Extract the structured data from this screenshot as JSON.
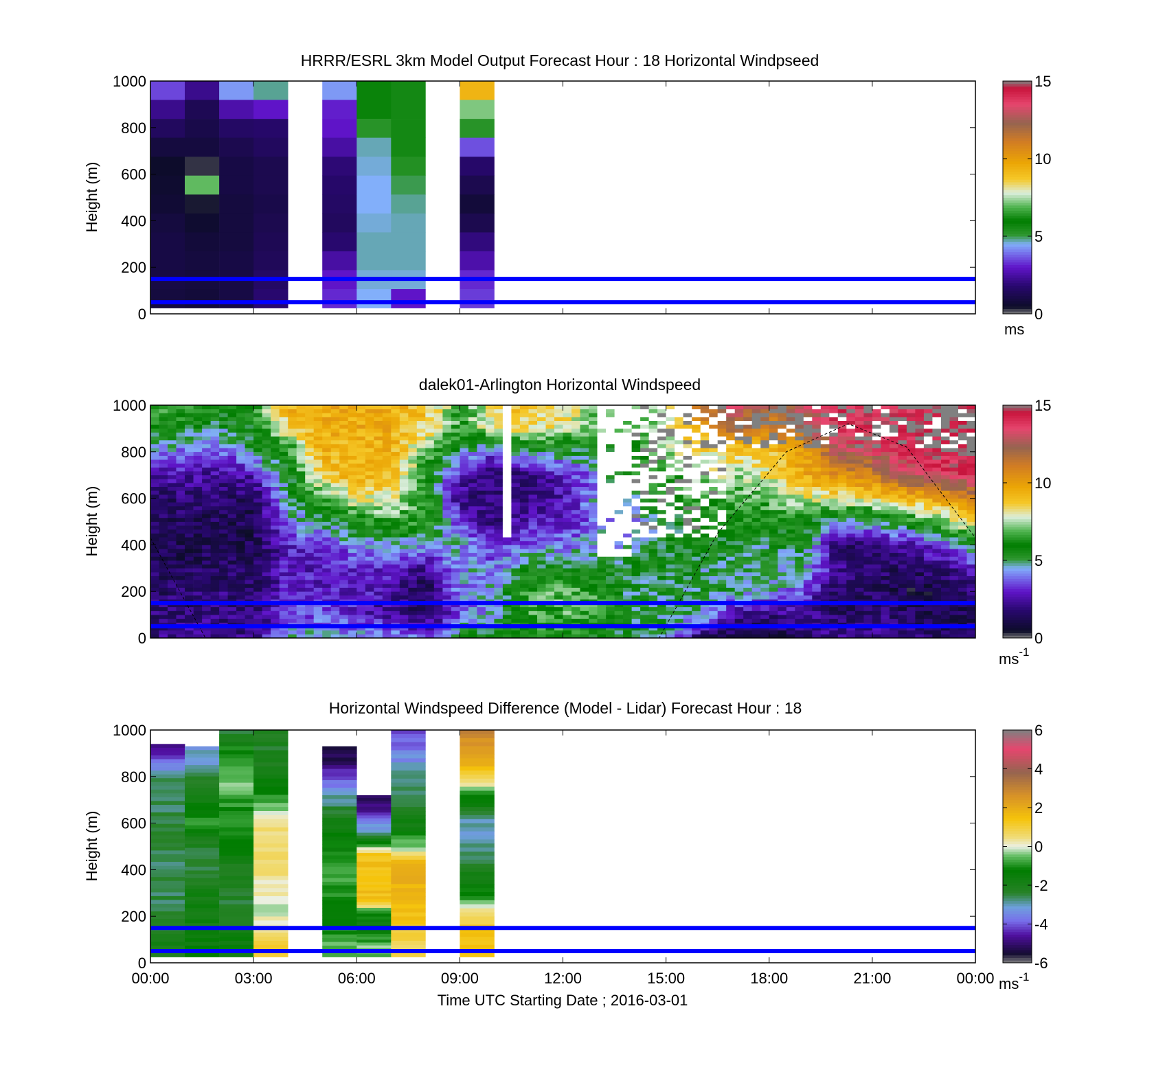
{
  "chart_data": [
    {
      "type": "heatmap",
      "title": "HRRR/ESRL 3km Model Output   Forecast Hour : 18 Horizontal Windpseed",
      "ylabel": "Height (m)",
      "ylim": [
        0,
        1000
      ],
      "yticks": [
        "0",
        "200",
        "400",
        "600",
        "800",
        "1000"
      ],
      "xlim_hours": [
        0,
        24
      ],
      "colorbar": {
        "min": 0,
        "max": 15,
        "ticks": [
          "0",
          "5",
          "10",
          "15"
        ],
        "unit": "ms",
        "unit_sup": "",
        "colormap": "speed"
      },
      "reference_lines_m": [
        150,
        50
      ],
      "columns": [
        {
          "x_start_h": 0,
          "x_end_h": 1,
          "values_top_to_bottom": [
            3.5,
            2.2,
            1.5,
            0.9,
            0.5,
            0.6,
            0.7,
            0.9,
            1.0,
            1.0,
            1.0,
            0.9
          ]
        },
        {
          "x_start_h": 1,
          "x_end_h": 2,
          "values_top_to_bottom": [
            2.2,
            1.3,
            1.1,
            0.9,
            0.3,
            7.0,
            0.4,
            0.6,
            0.8,
            0.9,
            0.9,
            0.8
          ]
        },
        {
          "x_start_h": 2,
          "x_end_h": 3,
          "values_top_to_bottom": [
            4.3,
            2.6,
            1.6,
            1.2,
            1.0,
            1.0,
            0.9,
            0.9,
            0.9,
            1.0,
            1.0,
            1.0
          ]
        },
        {
          "x_start_h": 3,
          "x_end_h": 4,
          "values_top_to_bottom": [
            4.8,
            3.0,
            1.7,
            1.5,
            1.2,
            1.2,
            1.1,
            1.2,
            1.3,
            1.4,
            1.6,
            1.8
          ]
        },
        {
          "x_start_h": 5,
          "x_end_h": 6,
          "values_top_to_bottom": [
            4.3,
            3.1,
            3.0,
            2.5,
            1.9,
            1.7,
            1.6,
            1.5,
            1.8,
            2.5,
            3.0,
            3.2
          ]
        },
        {
          "x_start_h": 6,
          "x_end_h": 7,
          "values_top_to_bottom": [
            5.8,
            5.8,
            5.2,
            4.7,
            4.6,
            4.5,
            4.5,
            4.6,
            4.7,
            4.7,
            4.6,
            4.5
          ]
        },
        {
          "x_start_h": 7,
          "x_end_h": 8,
          "values_top_to_bottom": [
            5.6,
            5.6,
            5.6,
            5.6,
            5.3,
            5.0,
            4.8,
            4.7,
            4.7,
            4.7,
            4.6,
            3.0
          ]
        },
        {
          "x_start_h": 9,
          "x_end_h": 10,
          "values_top_to_bottom": [
            9.3,
            7.2,
            5.2,
            3.6,
            1.7,
            1.2,
            0.8,
            1.2,
            2.0,
            2.6,
            3.2,
            3.4
          ]
        }
      ]
    },
    {
      "type": "heatmap",
      "title": "dalek01-Arlington  Horizontal Windspeed",
      "ylabel": "Height (m)",
      "ylim": [
        0,
        1000
      ],
      "yticks": [
        "0",
        "200",
        "400",
        "600",
        "800",
        "1000"
      ],
      "xlim_hours": [
        0,
        24
      ],
      "colorbar": {
        "min": 0,
        "max": 15,
        "ticks": [
          "0",
          "5",
          "10",
          "15"
        ],
        "unit": "ms",
        "unit_sup": "-1",
        "colormap": "speed"
      },
      "reference_lines_m": [
        150,
        50
      ],
      "gridded_profile": {
        "hours": [
          0,
          1,
          2,
          3,
          4,
          5,
          6,
          7,
          8,
          9,
          10,
          11,
          12,
          13,
          14,
          15,
          16,
          17,
          18,
          19,
          20,
          21,
          22,
          23,
          24
        ],
        "heights_m": [
          0,
          100,
          200,
          300,
          400,
          500,
          600,
          700,
          800,
          900,
          1000
        ],
        "values": [
          [
            2.0,
            1.8,
            1.7,
            1.4,
            1.3,
            1.3,
            1.5,
            2.5,
            4.5,
            6.0,
            7.0
          ],
          [
            2.5,
            2.0,
            1.6,
            1.3,
            1.2,
            1.4,
            1.8,
            2.6,
            4.0,
            5.5,
            6.5
          ],
          [
            2.2,
            2.0,
            1.9,
            1.6,
            1.5,
            1.4,
            1.6,
            2.2,
            3.5,
            5.0,
            6.0
          ],
          [
            2.0,
            1.8,
            1.7,
            1.4,
            1.2,
            1.1,
            1.5,
            2.6,
            5.0,
            5.8,
            6.0
          ],
          [
            4.5,
            3.5,
            3.0,
            2.9,
            3.0,
            4.2,
            5.0,
            5.3,
            6.0,
            8.5,
            9.5
          ],
          [
            4.5,
            3.6,
            3.0,
            2.8,
            3.3,
            5.0,
            6.5,
            8.5,
            9.5,
            9.5,
            9.5
          ],
          [
            4.5,
            3.0,
            3.0,
            3.0,
            4.2,
            6.0,
            8.0,
            9.5,
            9.0,
            9.5,
            9.5
          ],
          [
            4.5,
            2.2,
            2.5,
            3.2,
            4.5,
            6.5,
            8.0,
            9.0,
            9.5,
            9.5,
            9.5
          ],
          [
            3.5,
            1.5,
            1.2,
            2.0,
            4.5,
            6.5,
            6.5,
            6.0,
            7.0,
            8.5,
            9.0
          ],
          [
            5.5,
            3.5,
            4.0,
            4.5,
            4.5,
            3.5,
            2.0,
            3.0,
            5.0,
            6.5,
            6.5
          ],
          [
            5.5,
            4.5,
            4.5,
            4.0,
            3.0,
            2.0,
            1.8,
            1.5,
            3.5,
            8.0,
            8.5
          ],
          [
            6.0,
            6.5,
            6.5,
            5.5,
            4.0,
            2.8,
            2.0,
            2.2,
            5.0,
            8.5,
            9.0
          ],
          [
            6.0,
            6.8,
            7.0,
            5.5,
            4.0,
            3.0,
            2.5,
            3.0,
            5.0,
            8.0,
            8.5
          ],
          [
            5.5,
            6.5,
            6.5,
            5.0,
            4.5,
            4.0,
            4.5,
            4.0,
            5.5,
            7.0,
            7.0
          ],
          [
            5.0,
            5.5,
            5.0,
            5.5,
            4.5,
            4.0,
            5.0,
            6.0,
            6.0,
            7.0,
            7.0
          ],
          [
            5.0,
            5.0,
            5.0,
            5.5,
            5.5,
            5.0,
            6.0,
            6.5,
            7.0,
            7.5,
            8.0
          ],
          [
            1.5,
            5.0,
            5.0,
            5.0,
            5.5,
            6.0,
            6.5,
            7.5,
            8.5,
            9.5,
            12.0
          ],
          [
            1.0,
            2.0,
            5.0,
            5.0,
            5.5,
            6.0,
            6.5,
            7.5,
            8.5,
            12.0,
            13.0
          ],
          [
            1.0,
            2.0,
            4.5,
            5.0,
            5.0,
            6.0,
            7.0,
            8.0,
            9.0,
            11.0,
            12.0
          ],
          [
            1.5,
            2.5,
            3.5,
            4.5,
            5.5,
            6.0,
            8.0,
            9.5,
            10.0,
            12.0,
            13.0
          ],
          [
            2.5,
            1.5,
            1.5,
            2.5,
            1.5,
            4.5,
            8.0,
            10.5,
            12.5,
            14.0,
            14.0
          ],
          [
            2.5,
            2.0,
            1.5,
            1.8,
            2.0,
            5.0,
            8.5,
            11.0,
            13.0,
            14.0,
            14.0
          ],
          [
            2.0,
            1.5,
            1.0,
            1.5,
            2.5,
            6.0,
            9.0,
            13.0,
            14.0,
            14.0,
            14.0
          ],
          [
            1.5,
            1.0,
            1.0,
            2.0,
            3.5,
            7.0,
            10.0,
            13.5,
            14.5,
            15.0,
            15.0
          ],
          [
            1.5,
            1.5,
            2.0,
            3.0,
            5.0,
            9.0,
            11.0,
            14.0,
            15.0,
            15.0,
            15.0
          ]
        ]
      },
      "boundary_layer_curve": {
        "hours": [
          0,
          1.6,
          14.8,
          16.5,
          18.5,
          20.3,
          22.0,
          24
        ],
        "height_m": [
          430,
          0,
          0,
          450,
          800,
          920,
          820,
          430
        ]
      }
    },
    {
      "type": "heatmap",
      "title": "Horizontal Windspeed Difference (Model - Lidar) Forecast Hour : 18",
      "ylabel": "Height (m)",
      "xlabel": "Time UTC  Starting Date ; 2016-03-01",
      "ylim": [
        0,
        1000
      ],
      "yticks": [
        "0",
        "200",
        "400",
        "600",
        "800",
        "1000"
      ],
      "xlim_hours": [
        0,
        24
      ],
      "xticks": [
        "00:00",
        "03:00",
        "06:00",
        "09:00",
        "12:00",
        "15:00",
        "18:00",
        "21:00",
        "00:00"
      ],
      "colorbar": {
        "min": -6,
        "max": 6,
        "ticks": [
          "-6",
          "-4",
          "-2",
          "0",
          "2",
          "4",
          "6"
        ],
        "unit": "ms",
        "unit_sup": "-1",
        "colormap": "diff"
      },
      "reference_lines_m": [
        150,
        50
      ],
      "columns": [
        {
          "x_start_h": 0,
          "x_end_h": 1,
          "top_m": 940,
          "values_top_to_bottom": [
            -4.5,
            -4.0,
            -2.5,
            -2.6,
            -2.7,
            -2.6,
            -2.5,
            -2.5,
            -2.6,
            -2.6,
            -2.5,
            -2.5,
            -2.4,
            -2.0
          ]
        },
        {
          "x_start_h": 1,
          "x_end_h": 2,
          "top_m": 930,
          "values_top_to_bottom": [
            -3.2,
            -3.0,
            -2.4,
            -2.0,
            -1.2,
            -1.0,
            -2.0,
            -2.4,
            -2.5,
            -2.1,
            -1.8,
            -1.7,
            -1.8,
            -1.5
          ]
        },
        {
          "x_start_h": 2,
          "x_end_h": 3,
          "top_m": 1000,
          "values_top_to_bottom": [
            -2.4,
            -1.2,
            -0.6,
            -0.4,
            -0.8,
            -1.2,
            -1.0,
            -1.3,
            -1.9,
            -2.2,
            -2.3,
            -2.3,
            -2.0,
            -1.5
          ]
        },
        {
          "x_start_h": 3,
          "x_end_h": 4,
          "top_m": 1000,
          "values_top_to_bottom": [
            -2.3,
            -2.2,
            -2.0,
            -1.5,
            -0.8,
            -0.3,
            0.4,
            0.6,
            0.6,
            0.4,
            0.1,
            -0.3,
            0.4,
            1.0
          ]
        },
        {
          "x_start_h": 5,
          "x_end_h": 6,
          "top_m": 930,
          "values_top_to_bottom": [
            -5.5,
            -5.0,
            -4.2,
            -3.0,
            -2.4,
            -1.8,
            -1.4,
            -1.2,
            -1.0,
            -0.8,
            -1.0,
            -1.2,
            -1.0,
            -0.6
          ]
        },
        {
          "x_start_h": 6,
          "x_end_h": 7,
          "top_m": 720,
          "values_top_to_bottom": [
            -5.2,
            -4.8,
            -3.8,
            -2.8,
            -1.5,
            1.2,
            1.5,
            1.5,
            1.5,
            1.5,
            -1.0,
            -1.5,
            -1.0,
            -0.5
          ]
        },
        {
          "x_start_h": 7,
          "x_end_h": 8,
          "top_m": 1000,
          "values_top_to_bottom": [
            -4.0,
            -3.8,
            -3.2,
            -2.8,
            -2.6,
            -2.2,
            -1.5,
            -0.5,
            1.6,
            1.8,
            1.8,
            1.6,
            1.2,
            0.8
          ]
        },
        {
          "x_start_h": 9,
          "x_end_h": 10,
          "top_m": 1000,
          "values_top_to_bottom": [
            3.0,
            2.4,
            1.8,
            0.6,
            -1.2,
            -2.4,
            -3.2,
            -2.8,
            -2.4,
            -1.8,
            -1.2,
            0.2,
            1.2,
            1.5
          ]
        }
      ]
    }
  ]
}
